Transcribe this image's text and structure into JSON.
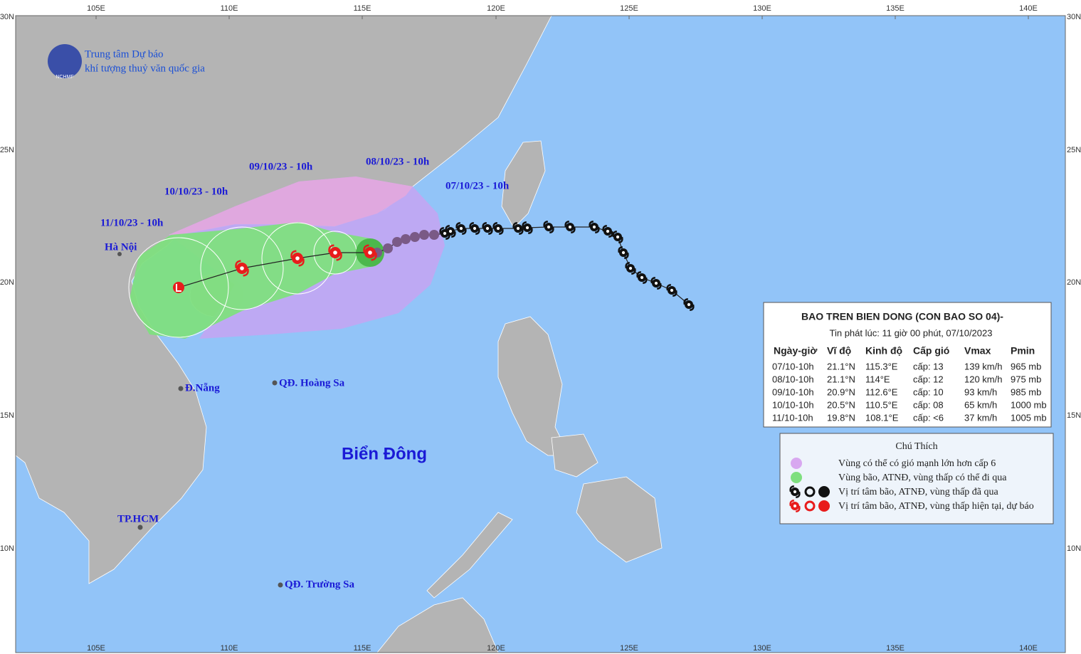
{
  "header": {
    "org_line1": "Trung tâm Dự báo",
    "org_line2": "khí tượng thuỷ văn quốc gia",
    "logo": "NCHMF"
  },
  "axes": {
    "lon_labels": [
      "105E",
      "110E",
      "115E",
      "120E",
      "125E",
      "130E",
      "135E",
      "140E"
    ],
    "lat_labels": [
      "10N",
      "15N",
      "20N",
      "25N",
      "30N"
    ]
  },
  "track_labels": [
    "07/10/23 - 10h",
    "08/10/23 - 10h",
    "09/10/23 - 10h",
    "10/10/23 - 10h",
    "11/10/23 - 10h"
  ],
  "places": [
    "Hà Nội",
    "Đ.Nẵng",
    "QĐ. Hoàng Sa",
    "TP.HCM",
    "QĐ. Trường Sa",
    "Biển Đông"
  ],
  "info": {
    "title": "BAO TREN BIEN DONG (CON BAO SO 04)-",
    "subtitle": "Tin phát lúc: 11 giờ 00 phút, 07/10/2023",
    "columns": [
      "Ngày-giờ",
      "Vĩ độ",
      "Kinh độ",
      "Cấp gió",
      "Vmax",
      "Pmin"
    ],
    "rows": [
      [
        "07/10-10h",
        "21.1°N",
        "115.3°E",
        "cấp: 13",
        "139 km/h",
        "965 mb"
      ],
      [
        "08/10-10h",
        "21.1°N",
        "114°E",
        "cấp: 12",
        "120 km/h",
        "975 mb"
      ],
      [
        "09/10-10h",
        "20.9°N",
        "112.6°E",
        "cấp: 10",
        "93 km/h",
        "985 mb"
      ],
      [
        "10/10-10h",
        "20.5°N",
        "110.5°E",
        "cấp: 08",
        "65 km/h",
        "1000 mb"
      ],
      [
        "11/10-10h",
        "19.8°N",
        "108.1°E",
        "cấp: <6",
        "37 km/h",
        "1005 mb"
      ]
    ]
  },
  "legend": {
    "title": "Chú Thích",
    "items": [
      "Vùng có thể có gió mạnh lớn hơn cấp 6",
      "Vùng bão, ATNĐ, vùng thấp có thể đi qua",
      "Vị trí tâm bão, ATNĐ, vùng thấp đã qua",
      "Vị trí tâm bão, ATNĐ, vùng thấp hiện tại, dự báo"
    ]
  }
}
